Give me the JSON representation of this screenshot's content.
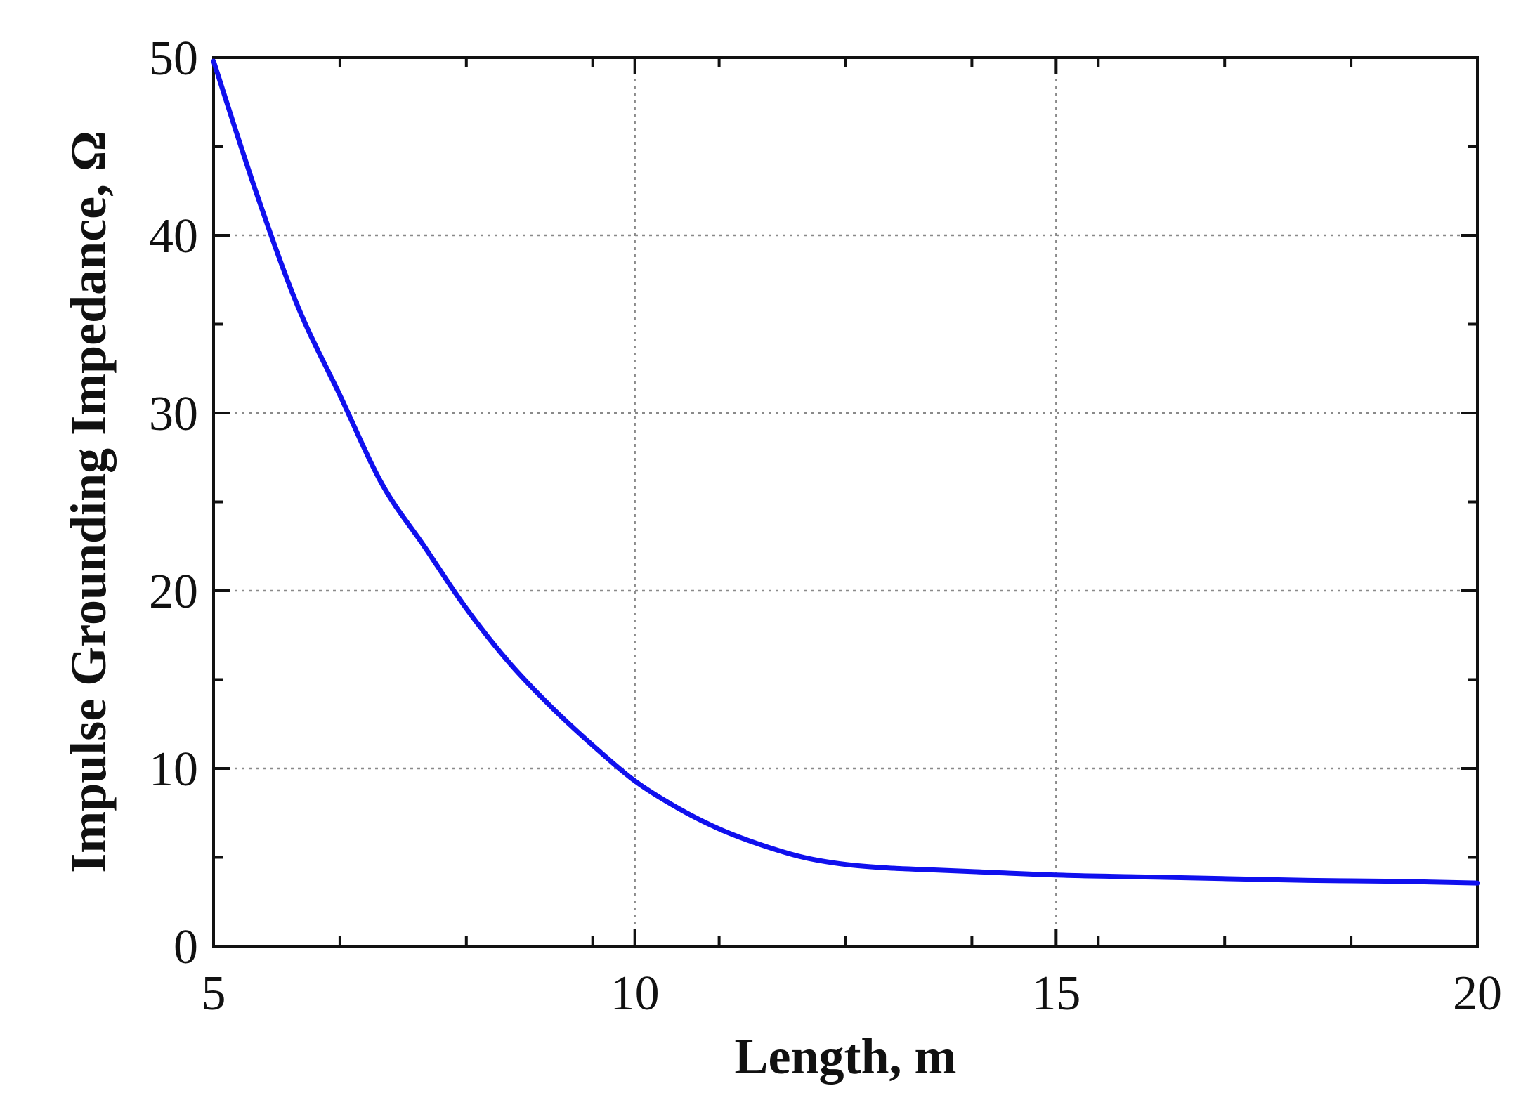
{
  "chart_data": {
    "type": "line",
    "title": "",
    "xlabel": "Length, m",
    "ylabel": "Impulse Grounding Impedance, Ω",
    "xlim": [
      5,
      20
    ],
    "ylim": [
      0,
      50
    ],
    "x_ticks": [
      "5",
      "10",
      "15",
      "20"
    ],
    "y_ticks": [
      "0",
      "10",
      "20",
      "30",
      "40",
      "50"
    ],
    "grid": true,
    "legend": "none",
    "series": [
      {
        "color": "#1010ee",
        "x": [
          5,
          5.5,
          6,
          6.5,
          7,
          7.5,
          8,
          8.5,
          9,
          9.5,
          10,
          10.5,
          11,
          11.5,
          12,
          12.5,
          13,
          13.5,
          14,
          15,
          16,
          17,
          18,
          19,
          20
        ],
        "y": [
          49.8,
          42.5,
          36,
          31,
          26,
          22.5,
          19,
          16,
          13.5,
          11.3,
          9.3,
          7.8,
          6.6,
          5.7,
          5.0,
          4.6,
          4.4,
          4.3,
          4.2,
          4.0,
          3.9,
          3.8,
          3.7,
          3.65,
          3.55
        ]
      }
    ]
  }
}
